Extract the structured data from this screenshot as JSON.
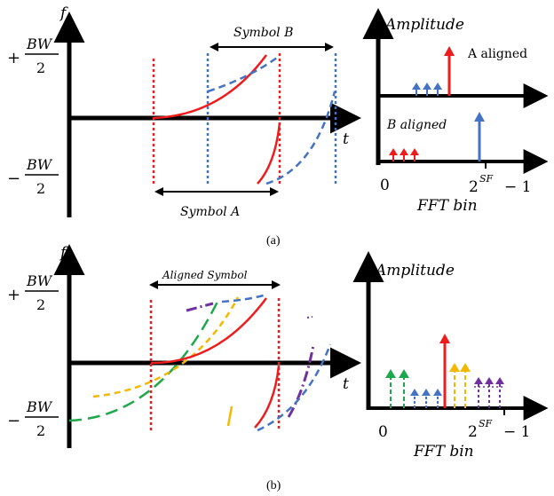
{
  "panel_a": {
    "caption": "(a)",
    "chirp": {
      "f_axis_label": "f",
      "t_axis_label": "t",
      "plus_prefix": "+",
      "minus_prefix": "−",
      "bw_label": "BW",
      "bw_den": "2",
      "symbol_a_label": "Symbol A",
      "symbol_b_label": "Symbol B"
    },
    "fft": {
      "y_axis_label": "Amplitude",
      "x_axis_label": "FFT bin",
      "tick_zero": "0",
      "tick_max_base": "2",
      "tick_max_exp": "SF",
      "tick_max_suffix": "− 1",
      "a_aligned_label": "A aligned",
      "b_aligned_label": "B aligned"
    }
  },
  "panel_b": {
    "caption": "(b)",
    "chirp": {
      "f_axis_label": "f",
      "t_axis_label": "t",
      "plus_prefix": "+",
      "minus_prefix": "−",
      "bw_label": "BW",
      "bw_den": "2",
      "aligned_symbol_label": "Aligned Symbol"
    },
    "fft": {
      "y_axis_label": "Amplitude",
      "x_axis_label": "FFT bin",
      "tick_zero": "0",
      "tick_max_base": "2",
      "tick_max_exp": "SF",
      "tick_max_suffix": "− 1"
    }
  },
  "colors": {
    "red": "#ee1c1c",
    "blue": "#4472c4",
    "green": "#1fa84b",
    "yellow": "#f5b800",
    "purple": "#7030a0",
    "black": "#000000"
  }
}
